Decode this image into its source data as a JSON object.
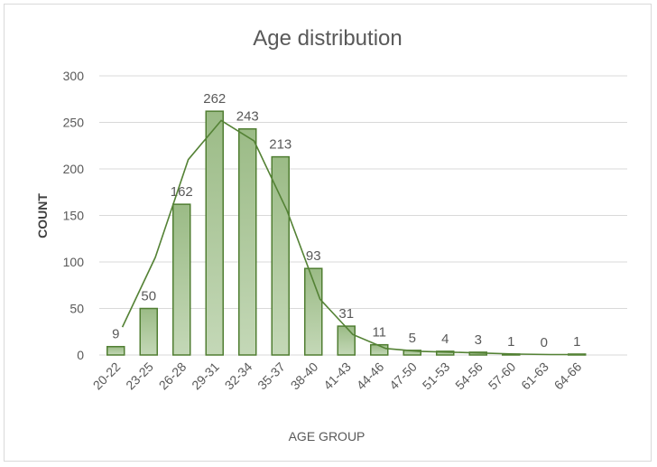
{
  "chart_data": {
    "type": "bar",
    "title": "Age distribution",
    "xlabel": "AGE GROUP",
    "ylabel": "COUNT",
    "ylim": [
      0,
      300
    ],
    "yticks": [
      0,
      50,
      100,
      150,
      200,
      250,
      300
    ],
    "grid": true,
    "categories": [
      "20-22",
      "23-25",
      "26-28",
      "29-31",
      "32-34",
      "35-37",
      "38-40",
      "41-43",
      "44-46",
      "47-50",
      "51-53",
      "54-56",
      "57-60",
      "61-63",
      "64-66"
    ],
    "series": [
      {
        "type": "bar",
        "values": [
          9,
          50,
          162,
          262,
          243,
          213,
          93,
          31,
          11,
          5,
          4,
          3,
          1,
          0,
          1
        ]
      },
      {
        "type": "line",
        "x": [
          1.2,
          2.2,
          3.2,
          4.2,
          5.2,
          6.2,
          7.2,
          8.2,
          9.2,
          10.2,
          11.2,
          12.2,
          13.2,
          14.2,
          15.2
        ],
        "values": [
          30,
          105,
          210,
          252,
          230,
          155,
          60,
          22,
          7,
          4,
          3,
          2,
          1,
          0.5,
          0.5
        ]
      }
    ],
    "colors": {
      "bar_fill": "#a9c49a",
      "bar_stroke": "#507e32",
      "line": "#548235",
      "grid": "#d9d9d9"
    }
  }
}
